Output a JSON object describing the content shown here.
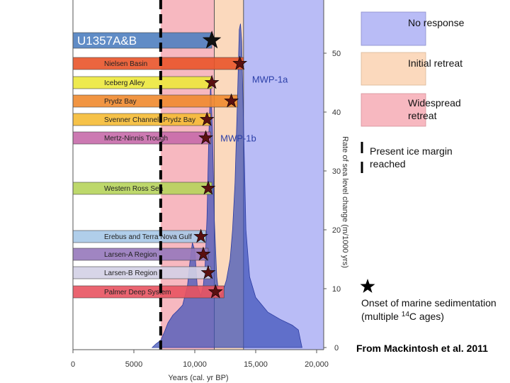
{
  "chart_data": {
    "type": "bar",
    "xlabel": "Years (cal. yr BP)",
    "ylabel_right": "Rate of sea level change (m/1000 yrs)",
    "xlim": [
      0,
      21000
    ],
    "ylim": [
      0,
      57
    ],
    "xticks": [
      {
        "value": 0,
        "label": "0"
      },
      {
        "value": 5000,
        "label": "5000"
      },
      {
        "value": 10000,
        "label": "10,000"
      },
      {
        "value": 15000,
        "label": "15,000"
      },
      {
        "value": 20000,
        "label": "20,000"
      }
    ],
    "yticks": [
      {
        "value": 0,
        "label": "0"
      },
      {
        "value": 10,
        "label": "10"
      },
      {
        "value": 20,
        "label": "20"
      },
      {
        "value": 30,
        "label": "30"
      },
      {
        "value": 40,
        "label": "40"
      },
      {
        "value": 50,
        "label": "50"
      }
    ],
    "zones": [
      {
        "name": "Widespread retreat",
        "start": 7200,
        "end": 11600,
        "color": "#f7b8c0"
      },
      {
        "name": "Initial retreat",
        "start": 11600,
        "end": 14000,
        "color": "#fbd9bd"
      },
      {
        "name": "No response",
        "start": 14000,
        "end": 21000,
        "color": "#b9bcf6"
      }
    ],
    "present_margin_year": 7200,
    "bars": [
      {
        "label": "U1357A&B",
        "end": 11400,
        "color": "#4f7fc0",
        "star": 11400
      },
      {
        "label": "Nielsen Basin",
        "end": 14000,
        "color": "#e9542a",
        "star": 13700
      },
      {
        "label": "Iceberg Alley",
        "end": 11400,
        "color": "#ece83c",
        "star": 11400
      },
      {
        "label": "Prydz Bay",
        "end": 13500,
        "color": "#f08a2e",
        "star": 13000
      },
      {
        "label": "Svenner Channel- Prydz Bay",
        "end": 11300,
        "color": "#f5bb35",
        "star": 11000
      },
      {
        "label": "Mertz-Ninnis Trough",
        "end": 11300,
        "color": "#c76aaa",
        "star": 10900
      },
      {
        "label": "Western Ross Sea",
        "end": 11400,
        "color": "#b6d45b",
        "star": 11100
      },
      {
        "label": "Erebus and Terra Nova Gulf",
        "end": 10900,
        "color": "#a7c9e8",
        "star": 10500
      },
      {
        "label": "Larsen-A Region",
        "end": 11100,
        "color": "#9678bb",
        "star": 10700
      },
      {
        "label": "Larsen-B Region",
        "end": 11300,
        "color": "#d3d0e6",
        "star": 11100
      },
      {
        "label": "Palmer Deep System",
        "end": 12400,
        "color": "#e85360",
        "star": 11700
      }
    ],
    "sea_level_curve": [
      [
        6500,
        0
      ],
      [
        6800,
        0.6
      ],
      [
        7200,
        1.2
      ],
      [
        7500,
        2.6
      ],
      [
        7800,
        4.2
      ],
      [
        8200,
        5.5
      ],
      [
        8600,
        6.3
      ],
      [
        9000,
        7.2
      ],
      [
        9400,
        10.5
      ],
      [
        9600,
        14.5
      ],
      [
        9800,
        17.8
      ],
      [
        10000,
        16.5
      ],
      [
        10200,
        10.5
      ],
      [
        10500,
        8.8
      ],
      [
        10700,
        10.5
      ],
      [
        10850,
        14
      ],
      [
        11000,
        22
      ],
      [
        11150,
        36
      ],
      [
        11300,
        45
      ],
      [
        11450,
        37
      ],
      [
        11600,
        22
      ],
      [
        11800,
        12
      ],
      [
        12000,
        8.5
      ],
      [
        12300,
        9.5
      ],
      [
        12600,
        11.5
      ],
      [
        12900,
        15
      ],
      [
        13100,
        20
      ],
      [
        13300,
        28
      ],
      [
        13500,
        42
      ],
      [
        13650,
        54
      ],
      [
        13750,
        55
      ],
      [
        13850,
        52
      ],
      [
        14000,
        38
      ],
      [
        14200,
        20
      ],
      [
        14500,
        12
      ],
      [
        15000,
        8.5
      ],
      [
        16000,
        6
      ],
      [
        17000,
        4.8
      ],
      [
        18000,
        3.8
      ],
      [
        18500,
        3
      ],
      [
        18750,
        0.5
      ],
      [
        18800,
        0
      ]
    ],
    "annotations": [
      {
        "text": "MWP-1a",
        "x": 14700,
        "y": 45
      },
      {
        "text": "MWP-1b",
        "x": 12100,
        "y": 35
      }
    ],
    "legend": [
      {
        "label": "No response",
        "color": "#b9bcf6",
        "type": "box"
      },
      {
        "label": "Initial retreat",
        "color": "#fbd9bd",
        "type": "box"
      },
      {
        "label": "Widespread retreat",
        "color": "#f7b8c0",
        "type": "box"
      },
      {
        "label": "Present ice margin reached",
        "type": "dashed-line"
      },
      {
        "label": "Onset of marine sedimentation (multiple 14C ages)",
        "type": "star"
      }
    ]
  },
  "legend_text": {
    "no_response": "No response",
    "initial_retreat": "Initial retreat",
    "widespread_line1": "Widespread",
    "widespread_line2": "retreat",
    "present_line1": "Present ice margin",
    "present_line2": "reached",
    "onset_line1": "Onset of marine sedimentation",
    "onset_line2_prefix": "(multiple ",
    "onset_line2_sup": "14",
    "onset_line2_suffix": "C ages)"
  },
  "credit": "From Mackintosh et al. 2011"
}
